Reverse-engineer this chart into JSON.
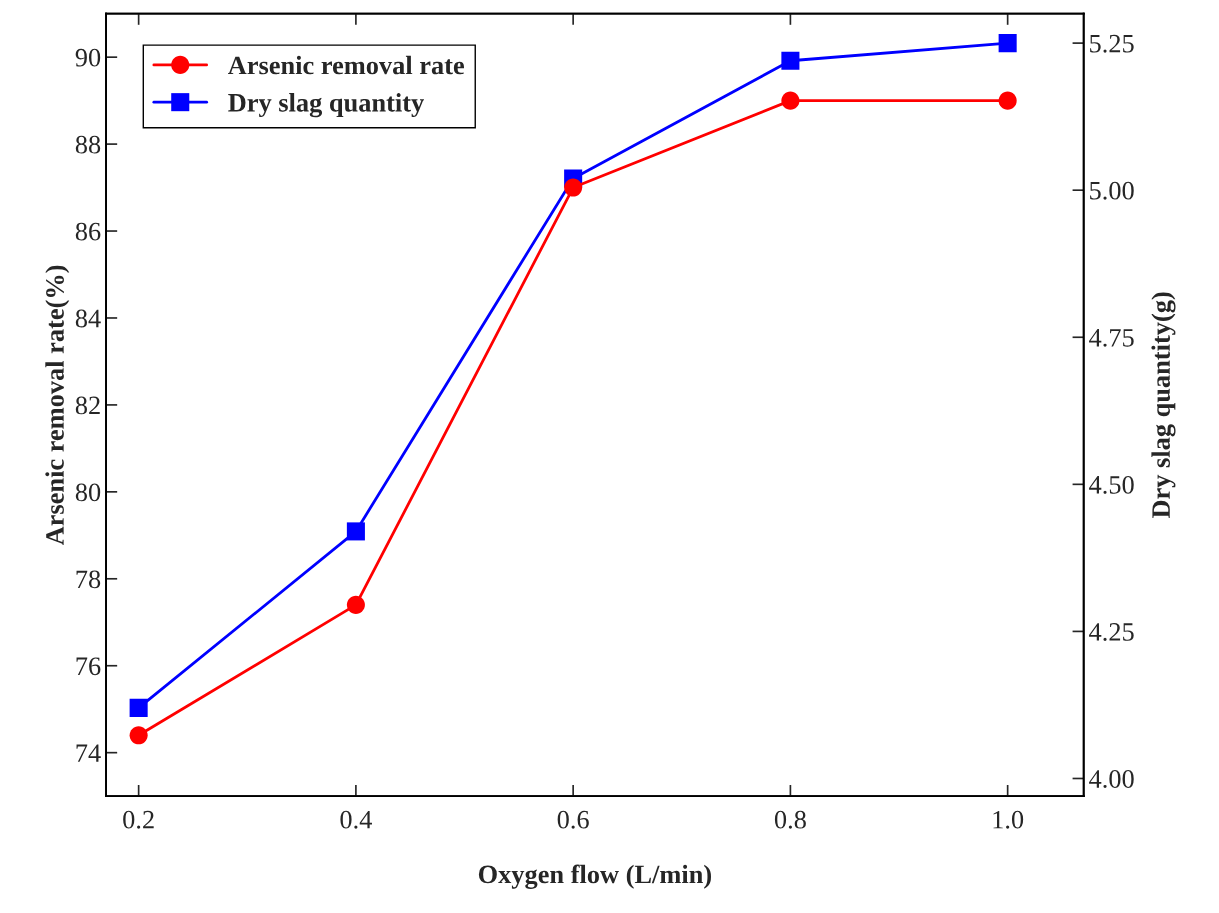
{
  "chart_data": {
    "type": "line",
    "xlabel": "Oxygen flow (L/min)",
    "ylabel": "Arsenic removal rate(%)",
    "y2label": "Dry slag quantity(g)",
    "x": [
      0.2,
      0.4,
      0.6,
      0.8,
      1.0
    ],
    "series": [
      {
        "name": "Arsenic removal rate",
        "color": "#ff0000",
        "values": [
          74.4,
          77.4,
          87.0,
          89.0,
          89.0
        ],
        "marker": "circle"
      },
      {
        "name": "Dry slag quantity",
        "color": "#0000ff",
        "values": [
          4.12,
          4.42,
          5.02,
          5.22,
          5.25
        ],
        "marker": "square",
        "axis": "y2"
      }
    ],
    "xlim": [
      0.17,
      1.07
    ],
    "xticks": [
      {
        "value": 0.2,
        "label": "0.2"
      },
      {
        "value": 0.4,
        "label": "0.4"
      },
      {
        "value": 0.6,
        "label": "0.6"
      },
      {
        "value": 0.8,
        "label": "0.8"
      },
      {
        "value": 1.0,
        "label": "1.0"
      }
    ],
    "ylim": [
      73,
      91
    ],
    "yticks": [
      74,
      76,
      78,
      80,
      82,
      84,
      86,
      88,
      90
    ],
    "y2lim": [
      3.97,
      5.3
    ],
    "y2ticks": [
      {
        "value": 4.0,
        "label": "4.00"
      },
      {
        "value": 4.25,
        "label": "4.25"
      },
      {
        "value": 4.5,
        "label": "4.50"
      },
      {
        "value": 4.75,
        "label": "4.75"
      },
      {
        "value": 5.0,
        "label": "5.00"
      },
      {
        "value": 5.25,
        "label": "5.25"
      }
    ],
    "legend": "top left",
    "grid": false,
    "line_style": "solid"
  }
}
